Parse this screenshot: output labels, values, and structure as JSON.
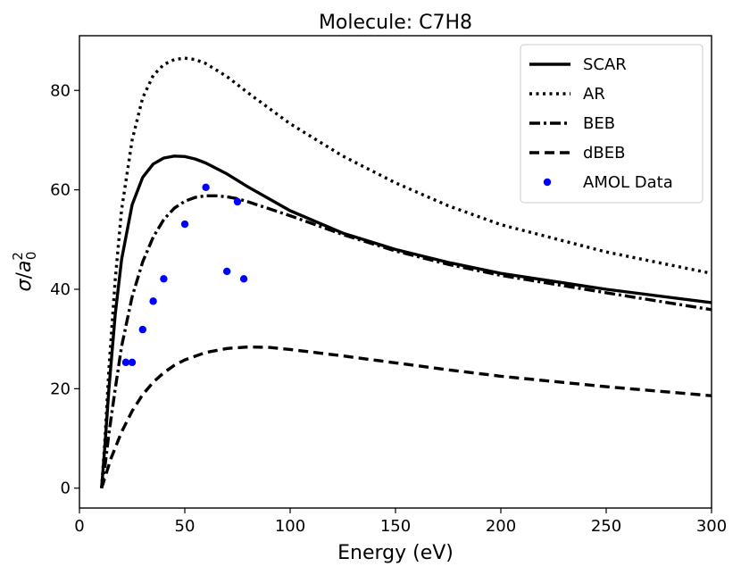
{
  "chart_data": {
    "type": "line",
    "title": "Molecule: C7H8",
    "xlabel": "Energy (eV)",
    "ylabel": "σ/a₀²",
    "xlim": [
      0,
      300
    ],
    "ylim": [
      -4,
      91
    ],
    "xticks": [
      0,
      50,
      100,
      150,
      200,
      250,
      300
    ],
    "yticks": [
      0,
      20,
      40,
      60,
      80
    ],
    "grid": false,
    "legend_position": "top-right",
    "series": [
      {
        "name": "SCAR",
        "style": "solid",
        "color": "#000000",
        "x": [
          10.5,
          12,
          14,
          17,
          20,
          25,
          30,
          35,
          40,
          45,
          50,
          55,
          60,
          70,
          80,
          100,
          125,
          150,
          175,
          200,
          250,
          300
        ],
        "y": [
          0,
          8,
          20,
          35,
          46,
          57,
          62.5,
          65.2,
          66.4,
          66.8,
          66.7,
          66.2,
          65.4,
          63.2,
          60.6,
          55.8,
          51.3,
          48.0,
          45.4,
          43.2,
          40.0,
          37.3
        ]
      },
      {
        "name": "AR",
        "style": "dotted",
        "color": "#000000",
        "x": [
          10.5,
          12,
          14,
          17,
          20,
          25,
          30,
          35,
          40,
          45,
          50,
          55,
          60,
          70,
          80,
          100,
          125,
          150,
          175,
          200,
          250,
          300
        ],
        "y": [
          0,
          9,
          24,
          42,
          56,
          70,
          78.5,
          83,
          85.2,
          86.2,
          86.5,
          86.2,
          85.4,
          82.8,
          79.5,
          73.3,
          66.8,
          61.4,
          56.8,
          53.0,
          47.5,
          43.2
        ]
      },
      {
        "name": "BEB",
        "style": "dashdot",
        "color": "#000000",
        "x": [
          10.5,
          12,
          14,
          17,
          20,
          25,
          30,
          35,
          40,
          45,
          50,
          55,
          60,
          65,
          70,
          75,
          80,
          100,
          125,
          150,
          175,
          200,
          250,
          300
        ],
        "y": [
          0,
          4,
          11,
          20,
          28.5,
          38.5,
          45.5,
          50.5,
          54,
          56.3,
          57.7,
          58.5,
          58.8,
          58.8,
          58.6,
          58.2,
          57.6,
          54.8,
          51.0,
          47.7,
          45.0,
          42.8,
          39.3,
          35.9
        ]
      },
      {
        "name": "dBEB",
        "style": "dashed",
        "color": "#000000",
        "x": [
          10.5,
          12,
          15,
          20,
          25,
          30,
          35,
          40,
          45,
          50,
          60,
          70,
          80,
          90,
          100,
          125,
          150,
          175,
          200,
          250,
          300
        ],
        "y": [
          0,
          2,
          6,
          11.3,
          15.5,
          18.8,
          21.3,
          23.2,
          24.7,
          25.8,
          27.3,
          28.1,
          28.4,
          28.3,
          27.9,
          26.6,
          25.2,
          23.8,
          22.5,
          20.4,
          18.6
        ]
      },
      {
        "name": "AMOL Data",
        "style": "points",
        "color": "#0000ff",
        "x": [
          22,
          25,
          30,
          35,
          40,
          50,
          60,
          70,
          75,
          78
        ],
        "y": [
          25.3,
          25.3,
          31.9,
          37.6,
          42.1,
          53.1,
          60.5,
          43.6,
          57.6,
          42.1
        ]
      }
    ]
  }
}
